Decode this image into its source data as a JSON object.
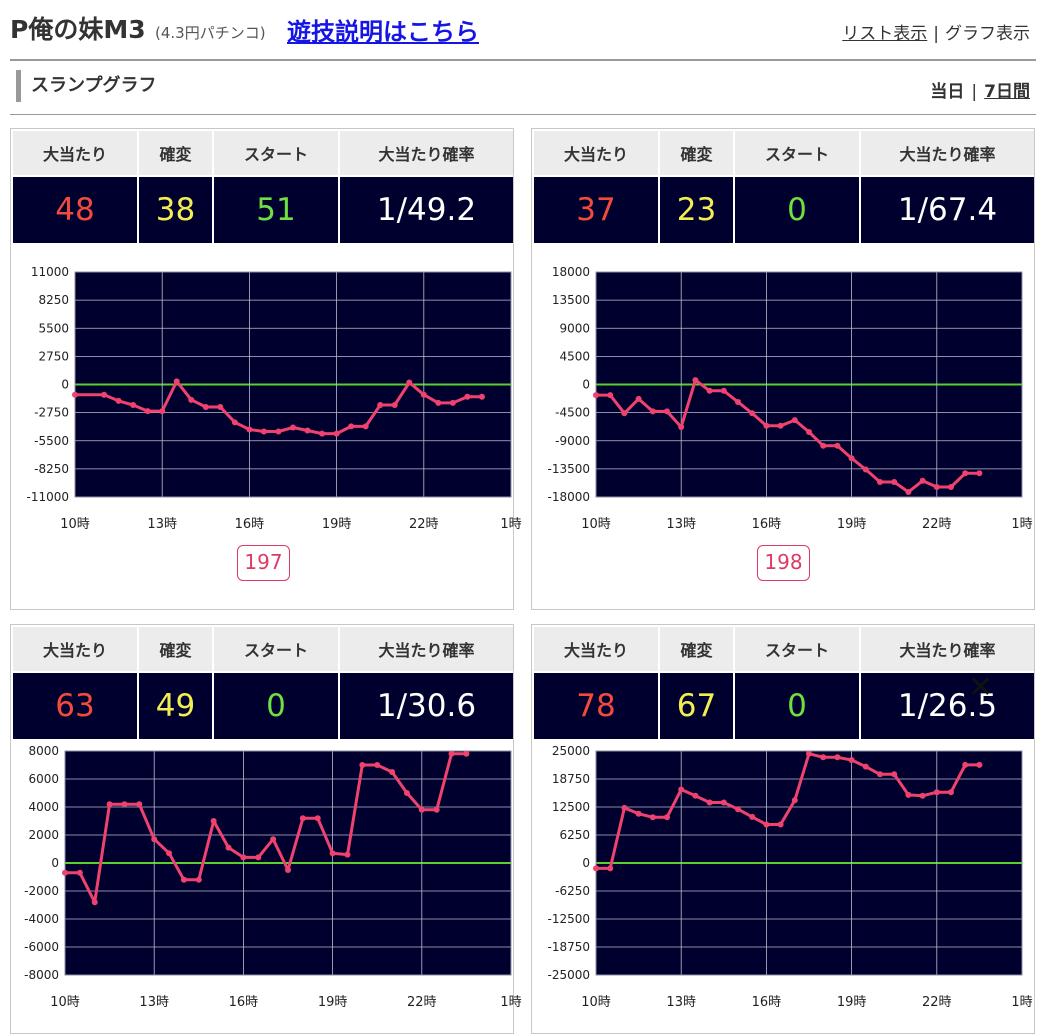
{
  "header": {
    "title": "P俺の妹M3",
    "subtitle": "(4.3円パチンコ)",
    "help_link": "遊技説明はこちら",
    "view_list": "リスト表示",
    "view_separator": "|",
    "view_graph": "グラフ表示"
  },
  "section": {
    "title": "スランプグラフ",
    "period_today": "当日",
    "period_separator": "|",
    "period_week": "7日間"
  },
  "stat_headers": [
    "大当たり",
    "確変",
    "スタート",
    "大当たり確率"
  ],
  "colors": {
    "jackpot": "#f24a3c",
    "kakuhen": "#f2ee52",
    "start": "#6ee042",
    "probability": "#ffffff",
    "plot_background": "#00002e",
    "series_line": "#f0426e",
    "zero_line": "#59d12c",
    "machine_badge": "#dd3a64"
  },
  "panels": [
    {
      "stats": {
        "jackpot": "48",
        "kakuhen": "38",
        "start": "51",
        "probability": "1/49.2"
      },
      "machine_no": "197",
      "chart_data": {
        "type": "line",
        "x_tick_labels": [
          "10時",
          "13時",
          "16時",
          "19時",
          "22時",
          "1時"
        ],
        "x_unit": "hours since 10時",
        "y_tick_labels": [
          "11000",
          "8250",
          "5500",
          "2750",
          "0",
          "-2750",
          "-5500",
          "-8250",
          "-11000"
        ],
        "ylim": [
          -11000,
          11000
        ],
        "grid": true,
        "series": [
          {
            "values": [
              [
                0,
                -1000
              ],
              [
                1,
                -1000
              ],
              [
                1.5,
                -1600
              ],
              [
                2,
                -2000
              ],
              [
                2.5,
                -2600
              ],
              [
                3,
                -2600
              ],
              [
                3.5,
                300
              ],
              [
                4,
                -1500
              ],
              [
                4.5,
                -2200
              ],
              [
                5,
                -2200
              ],
              [
                5.5,
                -3700
              ],
              [
                6,
                -4400
              ],
              [
                6.5,
                -4600
              ],
              [
                7,
                -4600
              ],
              [
                7.5,
                -4200
              ],
              [
                8,
                -4500
              ],
              [
                8.5,
                -4800
              ],
              [
                9,
                -4800
              ],
              [
                9.5,
                -4100
              ],
              [
                10,
                -4100
              ],
              [
                10.5,
                -2000
              ],
              [
                11,
                -2000
              ],
              [
                11.5,
                200
              ],
              [
                12,
                -1000
              ],
              [
                12.5,
                -1800
              ],
              [
                13,
                -1800
              ],
              [
                13.5,
                -1200
              ],
              [
                14,
                -1200
              ]
            ]
          }
        ]
      }
    },
    {
      "stats": {
        "jackpot": "37",
        "kakuhen": "23",
        "start": "0",
        "probability": "1/67.4"
      },
      "machine_no": "198",
      "chart_data": {
        "type": "line",
        "x_tick_labels": [
          "10時",
          "13時",
          "16時",
          "19時",
          "22時",
          "1時"
        ],
        "x_unit": "hours since 10時",
        "y_tick_labels": [
          "18000",
          "13500",
          "9000",
          "4500",
          "0",
          "-4500",
          "-9000",
          "-13500",
          "-18000"
        ],
        "ylim": [
          -18000,
          18000
        ],
        "grid": true,
        "series": [
          {
            "values": [
              [
                0,
                -1700
              ],
              [
                0.5,
                -1700
              ],
              [
                1,
                -4600
              ],
              [
                1.5,
                -2300
              ],
              [
                2,
                -4300
              ],
              [
                2.5,
                -4300
              ],
              [
                3,
                -6800
              ],
              [
                3.5,
                700
              ],
              [
                4,
                -1000
              ],
              [
                4.5,
                -1000
              ],
              [
                5,
                -2800
              ],
              [
                5.5,
                -4600
              ],
              [
                6,
                -6600
              ],
              [
                6.5,
                -6600
              ],
              [
                7,
                -5700
              ],
              [
                7.5,
                -7600
              ],
              [
                8,
                -9800
              ],
              [
                8.5,
                -9800
              ],
              [
                9,
                -11800
              ],
              [
                9.5,
                -13600
              ],
              [
                10,
                -15600
              ],
              [
                10.5,
                -15600
              ],
              [
                11,
                -17200
              ],
              [
                11.5,
                -15400
              ],
              [
                12,
                -16400
              ],
              [
                12.5,
                -16400
              ],
              [
                13,
                -14200
              ],
              [
                13.5,
                -14200
              ]
            ]
          }
        ]
      }
    },
    {
      "stats": {
        "jackpot": "63",
        "kakuhen": "49",
        "start": "0",
        "probability": "1/30.6"
      },
      "machine_no": "",
      "chart_data": {
        "type": "line",
        "x_tick_labels": [
          "10時",
          "13時",
          "16時",
          "19時",
          "22時",
          "1時"
        ],
        "x_unit": "hours since 10時",
        "y_tick_labels": [
          "8000",
          "6000",
          "4000",
          "2000",
          "0",
          "-2000",
          "-4000",
          "-6000",
          "-8000"
        ],
        "ylim": [
          -8000,
          8000
        ],
        "grid": true,
        "series": [
          {
            "values": [
              [
                0,
                -700
              ],
              [
                0.5,
                -700
              ],
              [
                1,
                -2800
              ],
              [
                1.5,
                4200
              ],
              [
                2,
                4200
              ],
              [
                2.5,
                4200
              ],
              [
                3,
                1700
              ],
              [
                3.5,
                700
              ],
              [
                4,
                -1200
              ],
              [
                4.5,
                -1200
              ],
              [
                5,
                3000
              ],
              [
                5.5,
                1100
              ],
              [
                6,
                400
              ],
              [
                6.5,
                400
              ],
              [
                7,
                1700
              ],
              [
                7.5,
                -500
              ],
              [
                8,
                3200
              ],
              [
                8.5,
                3200
              ],
              [
                9,
                700
              ],
              [
                9.5,
                600
              ],
              [
                10,
                7000
              ],
              [
                10.5,
                7000
              ],
              [
                11,
                6500
              ],
              [
                11.5,
                5000
              ],
              [
                12,
                3800
              ],
              [
                12.5,
                3800
              ],
              [
                13,
                7800
              ],
              [
                13.5,
                7800
              ]
            ]
          }
        ]
      }
    },
    {
      "stats": {
        "jackpot": "78",
        "kakuhen": "67",
        "start": "0",
        "probability": "1/26.5"
      },
      "machine_no": "",
      "chart_data": {
        "type": "line",
        "x_tick_labels": [
          "10時",
          "13時",
          "16時",
          "19時",
          "22時",
          "1時"
        ],
        "x_unit": "hours since 10時",
        "y_tick_labels": [
          "25000",
          "18750",
          "12500",
          "6250",
          "0",
          "-6250",
          "-12500",
          "-18750",
          "-25000"
        ],
        "ylim": [
          -25000,
          25000
        ],
        "grid": true,
        "series": [
          {
            "values": [
              [
                0,
                -1200
              ],
              [
                0.5,
                -1200
              ],
              [
                1,
                12300
              ],
              [
                1.5,
                11000
              ],
              [
                2,
                10200
              ],
              [
                2.5,
                10200
              ],
              [
                3,
                16400
              ],
              [
                3.5,
                15000
              ],
              [
                4,
                13500
              ],
              [
                4.5,
                13500
              ],
              [
                5,
                12000
              ],
              [
                5.5,
                10300
              ],
              [
                6,
                8600
              ],
              [
                6.5,
                8600
              ],
              [
                7,
                14000
              ],
              [
                7.5,
                24400
              ],
              [
                8,
                23600
              ],
              [
                8.5,
                23600
              ],
              [
                9,
                23000
              ],
              [
                9.5,
                21500
              ],
              [
                10,
                19800
              ],
              [
                10.5,
                19800
              ],
              [
                11,
                15200
              ],
              [
                11.5,
                15000
              ],
              [
                12,
                15800
              ],
              [
                12.5,
                15800
              ],
              [
                13,
                21900
              ],
              [
                13.5,
                21900
              ]
            ]
          }
        ]
      }
    }
  ]
}
